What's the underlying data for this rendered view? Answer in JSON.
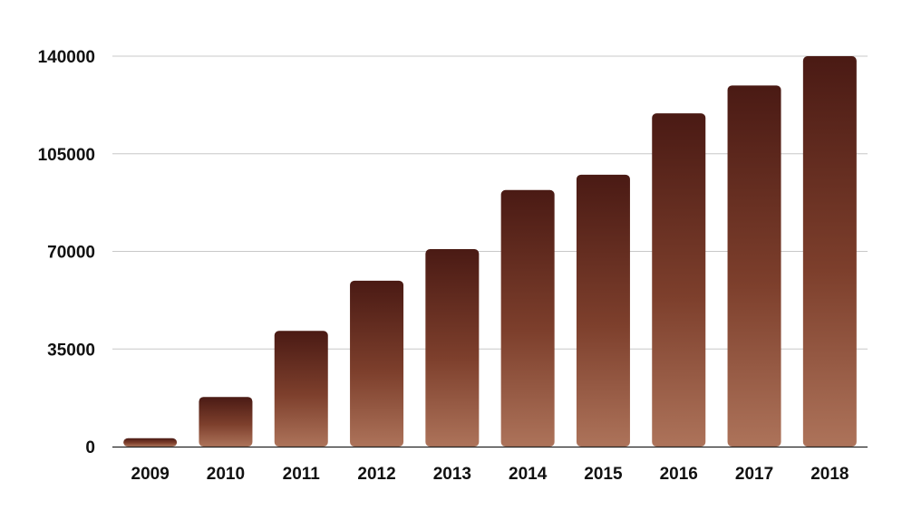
{
  "chart_data": {
    "type": "bar",
    "title": "",
    "xlabel": "",
    "ylabel": "",
    "categories": [
      "2009",
      "2010",
      "2011",
      "2012",
      "2013",
      "2014",
      "2015",
      "2016",
      "2017",
      "2018"
    ],
    "values": [
      3000,
      17800,
      41500,
      59500,
      70800,
      92000,
      97500,
      119500,
      129500,
      140000
    ],
    "ylim": [
      0,
      140000
    ],
    "yticks": [
      0,
      35000,
      70000,
      105000,
      140000
    ],
    "ytick_labels": [
      "0",
      "35000",
      "70000",
      "105000",
      "140000"
    ],
    "grid": true,
    "legend": "none",
    "colors": {
      "bar_top": "#4a1a14",
      "bar_bottom": "#ad735a"
    }
  }
}
